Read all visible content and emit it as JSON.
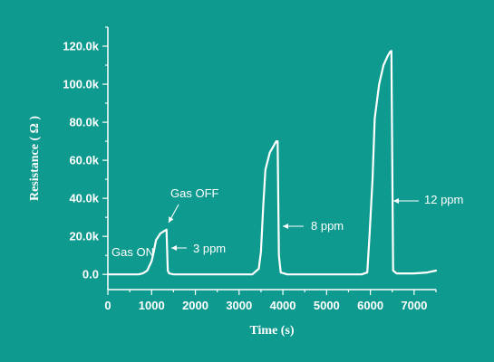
{
  "chart_data": {
    "type": "line",
    "xlabel": "Time (s)",
    "ylabel": "Resistance ( Ω )",
    "xlim": [
      0,
      7500
    ],
    "ylim": [
      -8000,
      130000
    ],
    "x_ticks": [
      0,
      1000,
      2000,
      3000,
      4000,
      5000,
      6000,
      7000
    ],
    "x_tick_labels": [
      "0",
      "1000",
      "2000",
      "3000",
      "4000",
      "5000",
      "6000",
      "7000"
    ],
    "y_ticks": [
      0,
      20000,
      40000,
      60000,
      80000,
      100000,
      120000
    ],
    "y_tick_labels": [
      "0.0",
      "20.0k",
      "40.0k",
      "60.0k",
      "80.0k",
      "100.0k",
      "120.0k"
    ],
    "grid": false,
    "series": [
      {
        "x": [
          0,
          700,
          800,
          900,
          1000,
          1050,
          1100,
          1200,
          1300,
          1340,
          1370,
          1400,
          1500,
          2000,
          2500,
          3000,
          3300,
          3450,
          3500,
          3550,
          3600,
          3700,
          3800,
          3850,
          3880,
          3910,
          3950,
          4100,
          4500,
          5000,
          5500,
          5800,
          5930,
          5980,
          6050,
          6100,
          6200,
          6300,
          6400,
          6450,
          6480,
          6520,
          6600,
          7000,
          7300,
          7500
        ],
        "values": [
          0,
          0,
          500,
          2000,
          7000,
          12000,
          18000,
          21500,
          23000,
          23500,
          2000,
          500,
          0,
          0,
          0,
          0,
          0,
          3000,
          12000,
          35000,
          55000,
          64000,
          68000,
          70000,
          70000,
          10000,
          1000,
          0,
          0,
          0,
          0,
          0,
          1000,
          20000,
          50000,
          82000,
          100000,
          110000,
          115000,
          117000,
          117500,
          2000,
          500,
          500,
          1000,
          2000
        ]
      }
    ],
    "annotations": [
      {
        "text": "Gas ON",
        "x": 700,
        "y": 300
      },
      {
        "text": "Gas OFF",
        "x": 1300,
        "y": 23000
      },
      {
        "text": "3 ppm",
        "x": 1340,
        "y": 12000
      },
      {
        "text": "8 ppm",
        "x": 3880,
        "y": 24000
      },
      {
        "text": "12 ppm",
        "x": 6480,
        "y": 38000
      }
    ]
  }
}
